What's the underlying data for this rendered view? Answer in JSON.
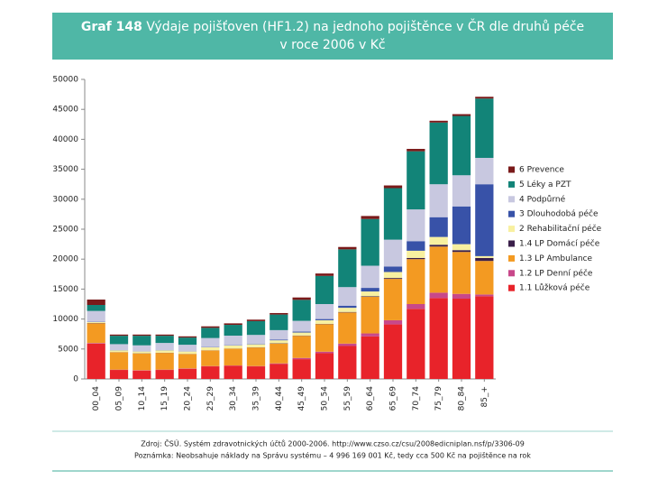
{
  "label": "Graf 148",
  "footer": {
    "source": "Zdroj: ČSÚ. Systém zdravotnických účtů 2000-2006. http://www.czso.cz/csu/2008edicniplan.nsf/p/3306-09",
    "note": "Poznámka: Neobsahuje náklady na Správu systému – 4 996 169 001 Kč, tedy cca 500 Kč na pojištěnce na rok"
  },
  "chart_data": {
    "type": "stacked_bar",
    "title": [
      "Výdaje pojišťoven (HF1.2) na jednoho pojištěnce v ČR dle druhů péče",
      "v roce 2006 v Kč"
    ],
    "categories": [
      "00_04",
      "05_09",
      "10_14",
      "15_19",
      "20_24",
      "25_29",
      "30_34",
      "35_39",
      "40_44",
      "45_49",
      "50_54",
      "55_59",
      "60_64",
      "65_69",
      "70_74",
      "75_79",
      "80_84",
      "85_+"
    ],
    "ylim": [
      0,
      50000
    ],
    "yticks": [
      0,
      5000,
      10000,
      15000,
      20000,
      25000,
      30000,
      35000,
      40000,
      45000,
      50000
    ],
    "legend": "right",
    "series": [
      {
        "name": "1.1 Lůžková péče",
        "color": "#e8232a",
        "values": [
          5900,
          1500,
          1400,
          1500,
          1700,
          2100,
          2200,
          2100,
          2500,
          3300,
          4300,
          5500,
          7100,
          9100,
          11700,
          13500,
          13400,
          13800
        ]
      },
      {
        "name": "1.2 LP Denní péče",
        "color": "#c8488a",
        "values": [
          100,
          50,
          50,
          50,
          50,
          50,
          50,
          50,
          100,
          200,
          250,
          400,
          500,
          700,
          800,
          900,
          800,
          300
        ]
      },
      {
        "name": "1.3 LP Ambulance",
        "color": "#f39a22",
        "values": [
          3300,
          2900,
          2800,
          2800,
          2400,
          2600,
          2800,
          3100,
          3300,
          3700,
          4600,
          5200,
          6100,
          6900,
          7500,
          7700,
          7000,
          5600
        ]
      },
      {
        "name": "1.4 LP Domácí péče",
        "color": "#3a1f4a",
        "values": [
          50,
          30,
          30,
          30,
          30,
          30,
          30,
          30,
          50,
          50,
          50,
          80,
          100,
          150,
          200,
          300,
          300,
          500
        ]
      },
      {
        "name": "2 Rehabilitační péče",
        "color": "#f8f0a0",
        "values": [
          150,
          300,
          300,
          400,
          400,
          500,
          500,
          500,
          500,
          500,
          600,
          700,
          800,
          1000,
          1200,
          1300,
          1000,
          300
        ]
      },
      {
        "name": "3 Dlouhodobá péče",
        "color": "#3852a8",
        "values": [
          50,
          30,
          30,
          30,
          30,
          50,
          50,
          70,
          100,
          150,
          200,
          350,
          600,
          900,
          1600,
          3300,
          6300,
          12000
        ]
      },
      {
        "name": "4 Podpůrné",
        "color": "#c8c8e0",
        "values": [
          1800,
          1000,
          1000,
          1200,
          1100,
          1500,
          1600,
          1500,
          1600,
          1800,
          2500,
          3100,
          3700,
          4500,
          5300,
          5500,
          5200,
          4400
        ]
      },
      {
        "name": "5 Léky a PZT",
        "color": "#128478",
        "values": [
          1000,
          1400,
          1600,
          1200,
          1200,
          1700,
          1800,
          2300,
          2600,
          3500,
          4700,
          6300,
          7800,
          8600,
          9700,
          10300,
          9900,
          9900
        ]
      },
      {
        "name": "6 Prevence",
        "color": "#7a1a1a",
        "values": [
          900,
          200,
          200,
          200,
          200,
          250,
          250,
          250,
          250,
          400,
          400,
          400,
          500,
          450,
          400,
          300,
          300,
          300
        ]
      }
    ]
  }
}
